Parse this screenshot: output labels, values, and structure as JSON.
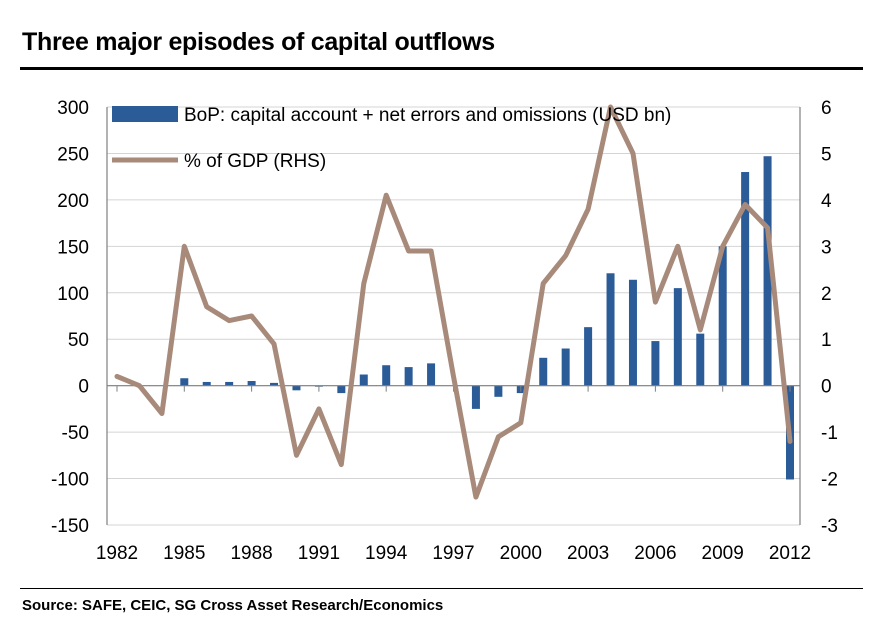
{
  "title": "Three major episodes of capital outflows",
  "source": "Source: SAFE, CEIC, SG Cross Asset Research/Economics",
  "colors": {
    "bar": "#2b5c98",
    "line": "#a88a7b",
    "grid": "#d4d4d4",
    "axis": "#808080"
  },
  "chart_data": {
    "type": "bar",
    "title": "Three major episodes of capital outflows",
    "x": [
      1982,
      1983,
      1984,
      1985,
      1986,
      1987,
      1988,
      1989,
      1990,
      1991,
      1992,
      1993,
      1994,
      1995,
      1996,
      1997,
      1998,
      1999,
      2000,
      2001,
      2002,
      2003,
      2004,
      2005,
      2006,
      2007,
      2008,
      2009,
      2010,
      2011,
      2012
    ],
    "x_tick_labels": [
      "1982",
      "1985",
      "1988",
      "1991",
      "1994",
      "1997",
      "2000",
      "2003",
      "2006",
      "2009",
      "2012"
    ],
    "y_left_ticks": [
      "300",
      "250",
      "200",
      "150",
      "100",
      "50",
      "0",
      "-50",
      "-100",
      "-150"
    ],
    "y_right_ticks": [
      "6",
      "5",
      "4",
      "3",
      "2",
      "1",
      "0",
      "-1",
      "-2",
      "-3"
    ],
    "ylim_left": [
      -150,
      300
    ],
    "ylim_right": [
      -3,
      6
    ],
    "grid": true,
    "legend_position": "top-left",
    "series": [
      {
        "name": "BoP: capital account + net errors and omissions (USD bn)",
        "type": "bar",
        "axis": "left",
        "values": [
          0,
          0,
          0,
          8,
          4,
          4,
          5,
          3,
          -5,
          -1,
          -8,
          12,
          22,
          20,
          24,
          0,
          -25,
          -12,
          -8,
          30,
          40,
          63,
          121,
          114,
          48,
          105,
          56,
          150,
          230,
          247,
          -101
        ]
      },
      {
        "name": "% of GDP (RHS)",
        "type": "line",
        "axis": "right",
        "values": [
          0.2,
          0.0,
          -0.6,
          3.0,
          1.7,
          1.4,
          1.5,
          0.9,
          -1.5,
          -0.5,
          -1.7,
          2.2,
          4.1,
          2.9,
          2.9,
          0.2,
          -2.4,
          -1.1,
          -0.8,
          2.2,
          2.8,
          3.8,
          6.0,
          5.0,
          1.8,
          3.0,
          1.2,
          3.0,
          3.9,
          3.4,
          -1.2
        ]
      }
    ]
  }
}
